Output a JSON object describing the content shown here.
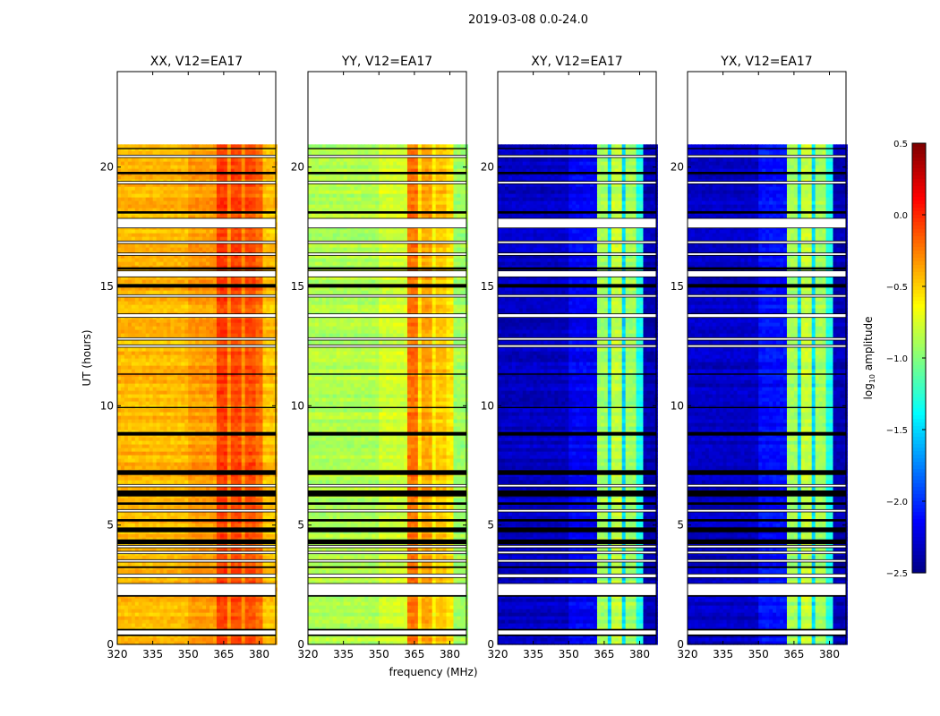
{
  "chart_data": {
    "type": "heatmap",
    "suptitle": "2019-03-08 0.0-24.0",
    "xlabel": "frequency (MHz)",
    "ylabel": "UT (hours)",
    "xlim": [
      320,
      387
    ],
    "ylim": [
      0,
      24
    ],
    "xticks": [
      "320",
      "335",
      "350",
      "365",
      "380"
    ],
    "yticks": [
      "0",
      "5",
      "10",
      "15",
      "20"
    ],
    "data_end_hour": 20.95,
    "colorbar": {
      "label": "log10 amplitude",
      "label_main": "log",
      "label_sub": "10",
      "label_rest": " amplitude",
      "colormap": "jet",
      "clim": [
        -2.5,
        0.5
      ],
      "ticks": [
        "0.5",
        "0.0",
        "−0.5",
        "−1.0",
        "−1.5",
        "−2.0",
        "−2.5"
      ]
    },
    "flagged_hours_white": [
      [
        0.4,
        0.6
      ],
      [
        2.05,
        2.55
      ],
      [
        2.8,
        2.95
      ],
      [
        3.45,
        3.55
      ],
      [
        3.8,
        3.9
      ],
      [
        4.05,
        4.15
      ],
      [
        5.55,
        5.65
      ],
      [
        6.6,
        6.7
      ],
      [
        12.45,
        12.55
      ],
      [
        12.75,
        12.85
      ],
      [
        13.7,
        13.85
      ],
      [
        14.55,
        14.65
      ],
      [
        15.4,
        15.65
      ],
      [
        16.3,
        16.4
      ],
      [
        16.8,
        16.9
      ],
      [
        17.45,
        17.85
      ],
      [
        19.3,
        19.4
      ],
      [
        20.4,
        20.5
      ]
    ],
    "flagged_hours_black": [
      [
        0.35,
        0.4
      ],
      [
        0.6,
        0.65
      ],
      [
        2.0,
        2.05
      ],
      [
        3.2,
        3.27
      ],
      [
        4.2,
        4.4
      ],
      [
        4.7,
        4.9
      ],
      [
        5.15,
        5.25
      ],
      [
        5.85,
        5.95
      ],
      [
        6.2,
        6.45
      ],
      [
        7.1,
        7.3
      ],
      [
        8.75,
        8.9
      ],
      [
        9.9,
        9.95
      ],
      [
        11.3,
        11.35
      ],
      [
        14.95,
        15.1
      ],
      [
        15.7,
        15.8
      ],
      [
        18.05,
        18.15
      ],
      [
        19.7,
        19.8
      ],
      [
        20.75,
        20.8
      ]
    ],
    "panels": [
      {
        "title": "XX, V12=EA17",
        "profile": [
          {
            "from": 320,
            "to": 350,
            "value": -0.42
          },
          {
            "from": 350,
            "to": 362,
            "value": -0.33
          },
          {
            "from": 362,
            "to": 366,
            "value": -0.05
          },
          {
            "from": 366,
            "to": 368,
            "value": -0.3
          },
          {
            "from": 368,
            "to": 372,
            "value": -0.08
          },
          {
            "from": 372,
            "to": 374,
            "value": -0.3
          },
          {
            "from": 374,
            "to": 378,
            "value": -0.1
          },
          {
            "from": 378,
            "to": 381,
            "value": -0.2
          },
          {
            "from": 381,
            "to": 387,
            "value": -0.45
          }
        ]
      },
      {
        "title": "YY, V12=EA17",
        "profile": [
          {
            "from": 320,
            "to": 350,
            "value": -0.85
          },
          {
            "from": 350,
            "to": 362,
            "value": -0.75
          },
          {
            "from": 362,
            "to": 366,
            "value": -0.2
          },
          {
            "from": 366,
            "to": 368,
            "value": -0.55
          },
          {
            "from": 368,
            "to": 372,
            "value": -0.35
          },
          {
            "from": 372,
            "to": 374,
            "value": -0.6
          },
          {
            "from": 374,
            "to": 378,
            "value": -0.45
          },
          {
            "from": 378,
            "to": 381,
            "value": -0.55
          },
          {
            "from": 381,
            "to": 387,
            "value": -0.9
          }
        ]
      },
      {
        "title": "XY, V12=EA17",
        "profile": [
          {
            "from": 320,
            "to": 350,
            "value": -2.3
          },
          {
            "from": 350,
            "to": 362,
            "value": -2.15
          },
          {
            "from": 362,
            "to": 366,
            "value": -0.9
          },
          {
            "from": 366,
            "to": 368,
            "value": -1.5
          },
          {
            "from": 368,
            "to": 372,
            "value": -0.8
          },
          {
            "from": 372,
            "to": 374,
            "value": -1.5
          },
          {
            "from": 374,
            "to": 378,
            "value": -0.9
          },
          {
            "from": 378,
            "to": 381,
            "value": -1.3
          },
          {
            "from": 381,
            "to": 387,
            "value": -2.35
          }
        ]
      },
      {
        "title": "YX, V12=EA17",
        "profile": [
          {
            "from": 320,
            "to": 350,
            "value": -2.3
          },
          {
            "from": 350,
            "to": 362,
            "value": -2.1
          },
          {
            "from": 362,
            "to": 366,
            "value": -0.9
          },
          {
            "from": 366,
            "to": 368,
            "value": -1.5
          },
          {
            "from": 368,
            "to": 372,
            "value": -0.8
          },
          {
            "from": 372,
            "to": 374,
            "value": -1.5
          },
          {
            "from": 374,
            "to": 378,
            "value": -0.9
          },
          {
            "from": 378,
            "to": 381,
            "value": -1.3
          },
          {
            "from": 381,
            "to": 387,
            "value": -2.35
          }
        ]
      }
    ]
  }
}
